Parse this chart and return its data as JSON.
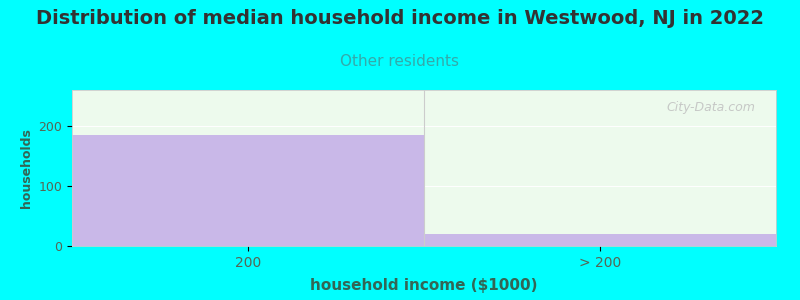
{
  "title": "Distribution of median household income in Westwood, NJ in 2022",
  "subtitle": "Other residents",
  "xlabel": "household income ($1000)",
  "ylabel": "households",
  "categories": [
    "200",
    "> 200"
  ],
  "values": [
    185,
    20
  ],
  "bar_color": "#c9b8e8",
  "bg_color": "#00ffff",
  "plot_bg_color": "#edfaed",
  "ylim": [
    0,
    260
  ],
  "yticks": [
    0,
    100,
    200
  ],
  "title_fontsize": 14,
  "subtitle_fontsize": 11,
  "subtitle_color": "#33aaaa",
  "axis_label_color": "#336655",
  "tick_color": "#556655",
  "watermark": "City-Data.com"
}
